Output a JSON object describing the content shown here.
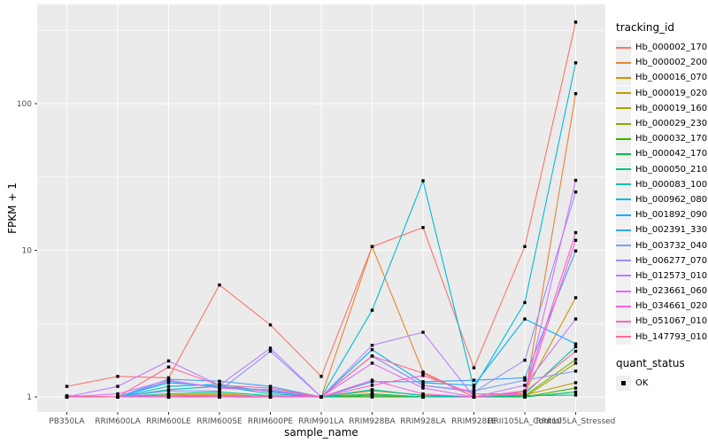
{
  "chart_data": {
    "type": "line",
    "title": "",
    "xlabel": "sample_name",
    "ylabel": "FPKM + 1",
    "y_scale": "log10",
    "ylim": [
      0.93,
      460
    ],
    "y_ticks": [
      1,
      10,
      100
    ],
    "y_minor_breaks": [
      3.162,
      31.62,
      316.2
    ],
    "grid": true,
    "panel_bg": "#EBEBEB",
    "grid_color": "#FFFFFF",
    "axis_text_color": "#4D4D4D",
    "legend": {
      "series_title": "tracking_id",
      "marker_title": "quant_status",
      "position": "right",
      "key_bg": "#F0F0F0"
    },
    "marker": {
      "shape": "square",
      "color": "#000000",
      "label": "OK"
    },
    "categories": [
      "PB350LA",
      "RRIM600LA",
      "RRIM600LE",
      "RRIM600SE",
      "RRIM600PE",
      "RRIM901LA",
      "RRIM928BA",
      "RRIM928LA",
      "RRIM928LE",
      "RRII105LA_Control",
      "RRII105LA_Stressed"
    ],
    "series": [
      {
        "name": "Hb_000002_170",
        "color": "#F8766D",
        "values": [
          1.18,
          1.38,
          1.35,
          5.8,
          3.1,
          1.38,
          10.6,
          14.3,
          1.58,
          10.6,
          360
        ]
      },
      {
        "name": "Hb_000002_200",
        "color": "#EA8331",
        "values": [
          1,
          1,
          1,
          1,
          1,
          1,
          10.6,
          1.48,
          1,
          1,
          117
        ]
      },
      {
        "name": "Hb_000016_070",
        "color": "#D89000",
        "values": [
          1,
          1,
          1.03,
          1.05,
          1,
          1,
          1.1,
          1.03,
          1,
          1.08,
          4.75
        ]
      },
      {
        "name": "Hb_000019_020",
        "color": "#C09B00",
        "values": [
          1,
          1,
          1.02,
          1.03,
          1,
          1,
          1.05,
          1,
          1,
          1.03,
          1.25
        ]
      },
      {
        "name": "Hb_000019_160",
        "color": "#A3A500",
        "values": [
          1,
          1,
          1,
          1.02,
          1,
          1,
          1.03,
          1,
          1,
          1,
          1.7
        ]
      },
      {
        "name": "Hb_000029_230",
        "color": "#7CAE00",
        "values": [
          1,
          1,
          1,
          1,
          1,
          1,
          1.02,
          1,
          1,
          1.02,
          1.8
        ]
      },
      {
        "name": "Hb_000032_170",
        "color": "#39B600",
        "values": [
          1,
          1,
          1,
          1,
          1,
          1,
          1,
          1,
          1,
          1,
          1.15
        ]
      },
      {
        "name": "Hb_000042_170",
        "color": "#00BB4E",
        "values": [
          1,
          1,
          1,
          1,
          1,
          1,
          1,
          1,
          1,
          1,
          1.08
        ]
      },
      {
        "name": "Hb_000050_210",
        "color": "#00C087",
        "values": [
          1,
          1,
          1.05,
          1.08,
          1.02,
          1,
          1.05,
          1,
          1,
          1.02,
          1.03
        ]
      },
      {
        "name": "Hb_000083_100",
        "color": "#00C0AF",
        "values": [
          1,
          1,
          1.12,
          1.18,
          1.05,
          1,
          1.12,
          1.02,
          1,
          1.05,
          2.2
        ]
      },
      {
        "name": "Hb_000962_080",
        "color": "#00BCD8",
        "values": [
          1,
          1,
          1.18,
          1.22,
          1.08,
          1,
          3.9,
          29.8,
          1.15,
          4.4,
          190
        ]
      },
      {
        "name": "Hb_001892_090",
        "color": "#00B0F6",
        "values": [
          1,
          1,
          1.25,
          1.18,
          1.1,
          1,
          2.1,
          1.25,
          1.2,
          3.4,
          2.3
        ]
      },
      {
        "name": "Hb_002391_330",
        "color": "#35A2FF",
        "values": [
          1,
          1,
          1.32,
          1.28,
          1.18,
          1,
          1.27,
          1.27,
          1.3,
          1.35,
          9.9
        ]
      },
      {
        "name": "Hb_003732_040",
        "color": "#7C9DFF",
        "values": [
          1,
          1,
          1.28,
          1.15,
          1.12,
          1,
          1.9,
          1.2,
          1.1,
          1.3,
          1.5
        ]
      },
      {
        "name": "Hb_006277_070",
        "color": "#9590FF",
        "values": [
          1,
          1,
          1.1,
          1.1,
          2.05,
          1,
          1.9,
          1.2,
          1.08,
          1.78,
          25
        ]
      },
      {
        "name": "Hb_012573_010",
        "color": "#BC7EFF",
        "values": [
          1,
          1.18,
          1.76,
          1.2,
          2.15,
          1,
          2.25,
          2.76,
          1,
          1.2,
          3.4
        ]
      },
      {
        "name": "Hb_023661_060",
        "color": "#E06EF5",
        "values": [
          1,
          1.05,
          1.3,
          1.15,
          1.1,
          1,
          1.7,
          1.15,
          1,
          1.05,
          30
        ]
      },
      {
        "name": "Hb_034661_020",
        "color": "#F763DF",
        "values": [
          1,
          1,
          1.02,
          1,
          1.02,
          1,
          1.3,
          1.05,
          1,
          1.1,
          13.2
        ]
      },
      {
        "name": "Hb_051067_010",
        "color": "#FF61C3",
        "values": [
          1,
          1,
          1,
          1.02,
          1,
          1,
          1.2,
          1.4,
          1.05,
          1.05,
          11.7
        ]
      },
      {
        "name": "Hb_147793_010",
        "color": "#FF6B94",
        "values": [
          1.02,
          1,
          1.6,
          1.2,
          1.15,
          1,
          1.9,
          1.45,
          1,
          1.08,
          2.05
        ]
      }
    ]
  }
}
